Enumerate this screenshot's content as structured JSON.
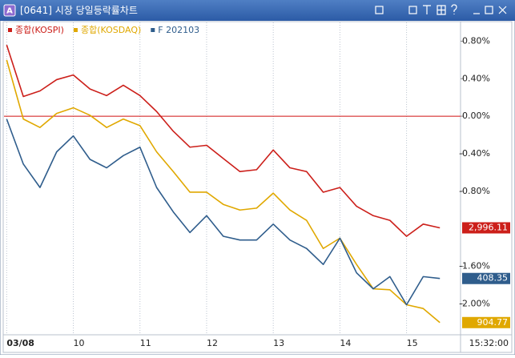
{
  "window": {
    "app_code": "A",
    "title": "[0641] 시장 당일등락률차트"
  },
  "chart_data": {
    "type": "line",
    "x": [
      9,
      9.25,
      9.5,
      9.75,
      10,
      10.25,
      10.5,
      10.75,
      11,
      11.25,
      11.5,
      11.75,
      12,
      12.25,
      12.5,
      12.75,
      13,
      13.25,
      13.5,
      13.75,
      14,
      14.25,
      14.5,
      14.75,
      15,
      15.25,
      15.5
    ],
    "series": [
      {
        "name": "종합(KOSPI)",
        "color": "#cc1f1a",
        "last_value": 2996.11,
        "last_value_label": "2,996.11",
        "values": [
          0.76,
          0.21,
          0.27,
          0.39,
          0.44,
          0.29,
          0.22,
          0.33,
          0.22,
          0.05,
          -0.16,
          -0.33,
          -0.31,
          -0.45,
          -0.59,
          -0.57,
          -0.36,
          -0.55,
          -0.59,
          -0.81,
          -0.76,
          -0.96,
          -1.06,
          -1.11,
          -1.28,
          -1.15,
          -1.19
        ]
      },
      {
        "name": "종합(KOSDAQ)",
        "color": "#e0a800",
        "last_value": 904.77,
        "last_value_label": "904.77",
        "values": [
          0.6,
          -0.03,
          -0.12,
          0.03,
          0.09,
          0.01,
          -0.12,
          -0.03,
          -0.1,
          -0.38,
          -0.59,
          -0.81,
          -0.81,
          -0.94,
          -1.0,
          -0.98,
          -0.82,
          -1.0,
          -1.11,
          -1.41,
          -1.3,
          -1.58,
          -1.84,
          -1.85,
          -2.01,
          -2.05,
          -2.2
        ]
      },
      {
        "name": "F 202103",
        "color": "#2f5d8c",
        "last_value": 408.35,
        "last_value_label": "408.35",
        "values": [
          -0.03,
          -0.51,
          -0.76,
          -0.38,
          -0.21,
          -0.46,
          -0.55,
          -0.42,
          -0.33,
          -0.76,
          -1.02,
          -1.24,
          -1.06,
          -1.28,
          -1.32,
          -1.32,
          -1.15,
          -1.32,
          -1.41,
          -1.58,
          -1.3,
          -1.67,
          -1.84,
          -1.71,
          -2.01,
          -1.71,
          -1.73
        ]
      }
    ],
    "xlim": [
      8.96,
      15.81
    ],
    "xticks": [
      {
        "value": 9,
        "label": "03/08"
      },
      10,
      11,
      12,
      13,
      14,
      15
    ],
    "ylim": [
      -2.33,
      1.0
    ],
    "yticks": [
      {
        "value": 0.8,
        "label": "0.80%"
      },
      {
        "value": 0.4,
        "label": "0.40%"
      },
      {
        "value": 0,
        "label": "0.00%"
      },
      {
        "value": -0.4,
        "label": "-0.40%"
      },
      {
        "value": -0.8,
        "label": "-0.80%"
      },
      {
        "value": -1.6,
        "label": "-1.60%"
      },
      {
        "value": -2.0,
        "label": "-2.00%"
      }
    ],
    "reference_line": 0,
    "reference_color": "#d01010",
    "time_label": "15:32:00"
  }
}
